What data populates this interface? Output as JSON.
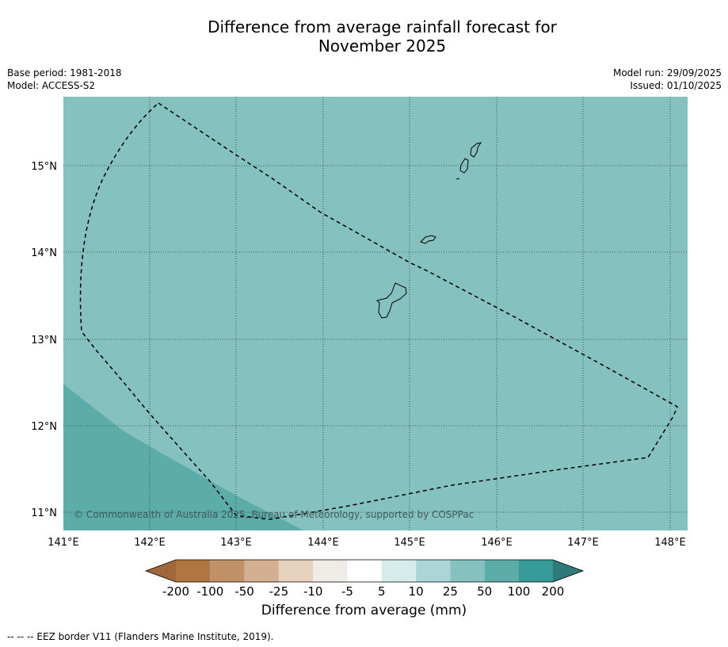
{
  "title": {
    "line1": "Difference from average rainfall forecast for",
    "line2": "November 2025"
  },
  "meta": {
    "base_period": "Base period: 1981-2018",
    "model": "Model: ACCESS-S2",
    "model_run": "Model run: 29/09/2025",
    "issued": "Issued: 01/10/2025"
  },
  "map": {
    "lon_labels": [
      "141°E",
      "142°E",
      "143°E",
      "144°E",
      "145°E",
      "146°E",
      "147°E",
      "148°E"
    ],
    "lat_labels": [
      "15°N",
      "14°N",
      "13°N",
      "12°N",
      "11°N"
    ],
    "copyright": "© Commonwealth of Australia 2025, Bureau of Meteorology, supported by COSPPac",
    "colors": {
      "ocean_25_50": "#84c1bf",
      "ocean_50_100": "#5cacaa"
    }
  },
  "colorbar": {
    "tick_labels": [
      "-200",
      "-100",
      "-50",
      "-25",
      "-10",
      "-5",
      "5",
      "10",
      "25",
      "50",
      "100",
      "200"
    ],
    "colors": [
      "#a0673a",
      "#b07641",
      "#c09066",
      "#d3b091",
      "#e6d1bd",
      "#efebe7",
      "#ffffff",
      "#d6ecea",
      "#acd6d5",
      "#84c1bf",
      "#5cacaa",
      "#369b98",
      "#2d7a78"
    ],
    "label": "Difference from average (mm)"
  },
  "footer": {
    "legend": "--  --  -- EEZ border V11 (Flanders Marine Institute, 2019)."
  }
}
